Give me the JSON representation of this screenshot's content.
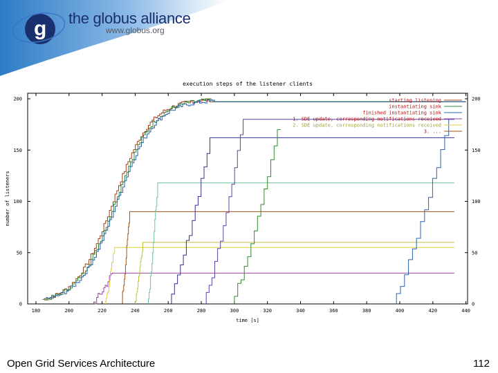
{
  "header": {
    "logo_text": "the globus alliance",
    "logo_url": "www.globus.org",
    "logo_letter": "g"
  },
  "footer": {
    "title": "Open Grid Services Architecture",
    "page_number": "112"
  },
  "chart_data": {
    "type": "line",
    "title": "execution steps of the listener clients",
    "xlabel": "time [s]",
    "ylabel": "number of listeners",
    "xlim": [
      175,
      441
    ],
    "ylim": [
      0,
      200
    ],
    "xticks": [
      180,
      200,
      220,
      240,
      260,
      280,
      300,
      320,
      340,
      360,
      380,
      400,
      420,
      440
    ],
    "yticks": [
      0,
      50,
      100,
      150,
      200
    ],
    "legend_position": "top-right",
    "grid": false,
    "legend": [
      "starting listening",
      "instantiating sink",
      "finished instantiating sink",
      "1. SDE update, corresponding notifications received",
      "2. SDE update, corresponding notifications received",
      "3. ..."
    ],
    "curves": [
      {
        "name": "starting listening",
        "color": "#a04020",
        "shape": "sigmoid",
        "x_start": 184,
        "x_end": 285,
        "y_max": 200
      },
      {
        "name": "instantiating sink",
        "color": "#2a8a2a",
        "shape": "sigmoid",
        "x_start": 185,
        "x_end": 287,
        "y_max": 200
      },
      {
        "name": "finished instantiating sink",
        "color": "#2a60b0",
        "shape": "sigmoid",
        "x_start": 186,
        "x_end": 288,
        "y_max": 199
      }
    ],
    "steps": [
      {
        "color": "#a040a0",
        "x_start": 215,
        "x_end": 227,
        "x_flat_end": 433,
        "y_max": 30
      },
      {
        "color": "#e0d040",
        "x_start": 222,
        "x_end": 228,
        "x_flat_end": 433,
        "y_max": 55
      },
      {
        "color": "#a05010",
        "x_start": 232,
        "x_end": 237,
        "x_flat_end": 433,
        "y_max": 90
      },
      {
        "color": "#c0c040",
        "x_start": 240,
        "x_end": 245,
        "x_flat_end": 433,
        "y_max": 60
      },
      {
        "color": "#70c0a0",
        "x_start": 248,
        "x_end": 254,
        "x_flat_end": 433,
        "y_max": 118
      },
      {
        "color": "#303090",
        "x_start": 262,
        "x_end": 287,
        "x_flat_end": 433,
        "y_max": 162
      },
      {
        "color": "#6040a0",
        "x_start": 283,
        "x_end": 307,
        "x_flat_end": 433,
        "y_max": 180
      },
      {
        "color": "#2a8a2a",
        "x_start": 300,
        "x_end": 328,
        "x_flat_end": 328,
        "y_max": 170
      },
      {
        "color": "#2a60b0",
        "x_start": 398,
        "x_end": 432,
        "x_flat_end": 433,
        "y_max": 180
      }
    ]
  }
}
